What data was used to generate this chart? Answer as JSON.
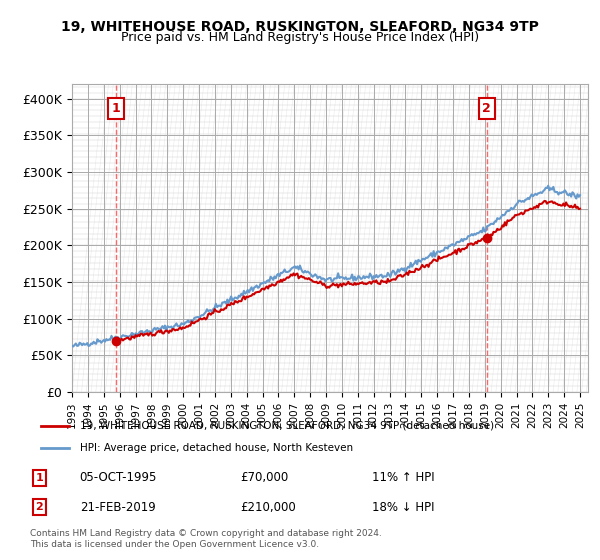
{
  "title": "19, WHITEHOUSE ROAD, RUSKINGTON, SLEAFORD, NG34 9TP",
  "subtitle": "Price paid vs. HM Land Registry's House Price Index (HPI)",
  "ylabel_ticks": [
    "£0",
    "£50K",
    "£100K",
    "£150K",
    "£200K",
    "£250K",
    "£300K",
    "£350K",
    "£400K"
  ],
  "ytick_values": [
    0,
    50000,
    100000,
    150000,
    200000,
    250000,
    300000,
    350000,
    400000
  ],
  "ylim": [
    0,
    420000
  ],
  "xlim_start": 1993.0,
  "xlim_end": 2025.5,
  "xtick_years": [
    1993,
    1994,
    1995,
    1996,
    1997,
    1998,
    1999,
    2000,
    2001,
    2002,
    2003,
    2004,
    2005,
    2006,
    2007,
    2008,
    2009,
    2010,
    2011,
    2012,
    2013,
    2014,
    2015,
    2016,
    2017,
    2018,
    2019,
    2020,
    2021,
    2022,
    2023,
    2024,
    2025
  ],
  "sale1_x": 1995.75,
  "sale1_y": 70000,
  "sale1_label": "1",
  "sale1_date": "05-OCT-1995",
  "sale1_price": "£70,000",
  "sale1_hpi": "11% ↑ HPI",
  "sale2_x": 2019.13,
  "sale2_y": 210000,
  "sale2_label": "2",
  "sale2_date": "21-FEB-2019",
  "sale2_price": "£210,000",
  "sale2_hpi": "18% ↓ HPI",
  "line1_color": "#cc0000",
  "line2_color": "#6699cc",
  "vline_color": "#ff4444",
  "box_color": "#cc0000",
  "legend_label1": "19, WHITEHOUSE ROAD, RUSKINGTON, SLEAFORD, NG34 9TP (detached house)",
  "legend_label2": "HPI: Average price, detached house, North Kesteven",
  "footer": "Contains HM Land Registry data © Crown copyright and database right 2024.\nThis data is licensed under the Open Government Licence v3.0.",
  "background_color": "#ffffff",
  "grid_color": "#cccccc"
}
